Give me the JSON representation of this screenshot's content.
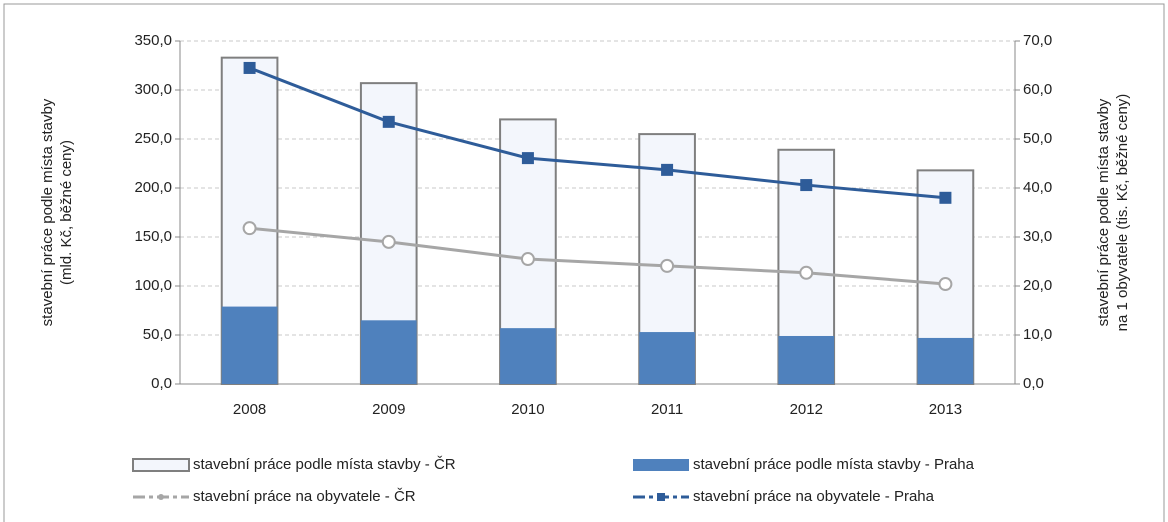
{
  "chart_data": {
    "type": "combo",
    "categories": [
      "2008",
      "2009",
      "2010",
      "2011",
      "2012",
      "2013"
    ],
    "y_label": [
      "stavební práce podle místa stavby",
      "(mld. Kč, běžné ceny)"
    ],
    "y2_label": [
      "stavební práce podle místa stavby",
      "na 1 obyvatele (tis. Kč, běžné ceny)"
    ],
    "ylim": [
      0,
      350
    ],
    "yticks": [
      {
        "value": 0,
        "label": "0,0"
      },
      {
        "value": 50,
        "label": "50,0"
      },
      {
        "value": 100,
        "label": "100,0"
      },
      {
        "value": 150,
        "label": "150,0"
      },
      {
        "value": 200,
        "label": "200,0"
      },
      {
        "value": 250,
        "label": "250,0"
      },
      {
        "value": 300,
        "label": "300,0"
      },
      {
        "value": 350,
        "label": "350,0"
      }
    ],
    "y2lim": [
      0,
      70
    ],
    "y2ticks": [
      {
        "value": 0,
        "label": "0,0"
      },
      {
        "value": 10,
        "label": "10,0"
      },
      {
        "value": 20,
        "label": "20,0"
      },
      {
        "value": 30,
        "label": "30,0"
      },
      {
        "value": 40,
        "label": "40,0"
      },
      {
        "value": 50,
        "label": "50,0"
      },
      {
        "value": 60,
        "label": "60,0"
      },
      {
        "value": 70,
        "label": "70,0"
      }
    ],
    "grid": true,
    "legend": "bottom",
    "series": [
      {
        "name": "stavební práce podle místa stavby - ČR",
        "type": "bar",
        "color": "#f3f6fc",
        "values": [
          333,
          307,
          270,
          255,
          239,
          218
        ]
      },
      {
        "name": "stavební práce podle místa stavby - Praha",
        "type": "bar",
        "color": "#4f81bd",
        "values": [
          79,
          65,
          57,
          53,
          49,
          47
        ]
      },
      {
        "name": "stavební práce na obyvatele - ČR",
        "type": "line",
        "axis": "y2",
        "color": "#a6a6a6",
        "marker": "circle",
        "values": [
          31.8,
          29.0,
          25.5,
          24.1,
          22.7,
          20.4
        ]
      },
      {
        "name": "stavební práce na obyvatele - Praha",
        "type": "line",
        "axis": "y2",
        "color": "#2e5c99",
        "marker": "square",
        "values": [
          64.5,
          53.5,
          46.1,
          43.7,
          40.6,
          38.0
        ]
      }
    ]
  }
}
